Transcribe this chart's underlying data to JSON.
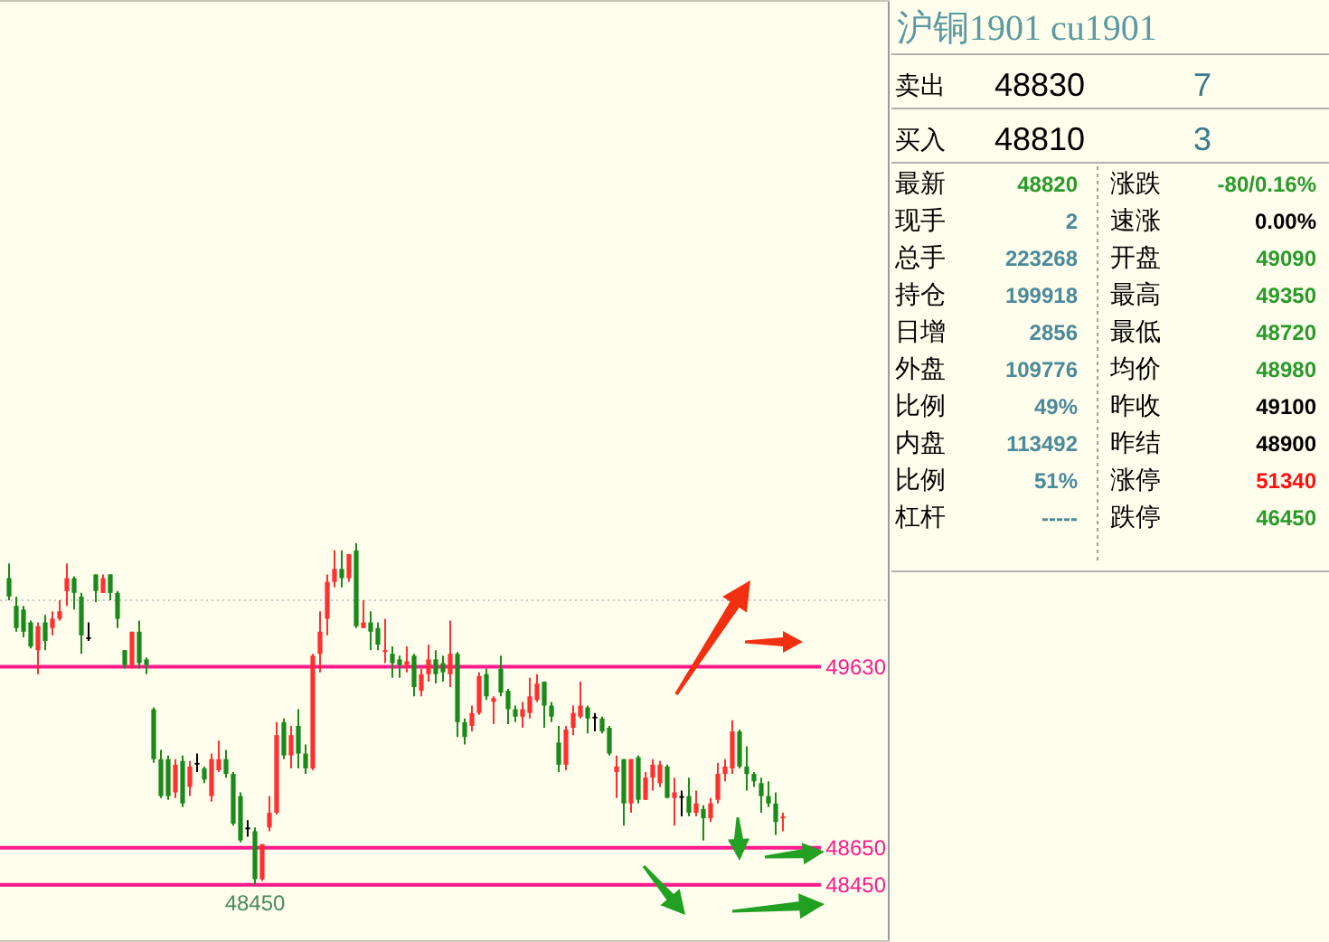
{
  "chart_data": [
    {
      "type": "candlestick",
      "categories": [
        null,
        null,
        null,
        null,
        null,
        null,
        null,
        null,
        null,
        null,
        null,
        null,
        null,
        null,
        null,
        null,
        null,
        null,
        null,
        null,
        null,
        null,
        null,
        null,
        null,
        null,
        null,
        null,
        null,
        null,
        null,
        null,
        null,
        null,
        null,
        null,
        null,
        null,
        null,
        null,
        null,
        null,
        null,
        null,
        null,
        null,
        null,
        null,
        null,
        null,
        null,
        null,
        null,
        null,
        null,
        null,
        null,
        null,
        null,
        null,
        null,
        null,
        null,
        null,
        null,
        null,
        null,
        null,
        null,
        null,
        null,
        null,
        null,
        null,
        null,
        null,
        null,
        null,
        null,
        null,
        null,
        null,
        null,
        null,
        null,
        null,
        null,
        null,
        null,
        null,
        null,
        null,
        null,
        null,
        null,
        null,
        null,
        null,
        null,
        null,
        null,
        null,
        null,
        null,
        null,
        null,
        null,
        null
      ],
      "ohlc": [
        [
          50110,
          50190,
          49990,
          50010
        ],
        [
          49960,
          50010,
          49820,
          49840
        ],
        [
          49940,
          49960,
          49790,
          49820
        ],
        [
          49870,
          49880,
          49730,
          49740
        ],
        [
          49720,
          49870,
          49590,
          49850
        ],
        [
          49870,
          49910,
          49720,
          49770
        ],
        [
          49840,
          49930,
          49800,
          49890
        ],
        [
          49890,
          49990,
          49880,
          49930
        ],
        [
          50040,
          50190,
          49960,
          50110
        ],
        [
          50110,
          50120,
          49940,
          50030
        ],
        [
          50010,
          50030,
          49700,
          49800
        ],
        [
          49790,
          49870,
          49770,
          49790
        ],
        [
          50130,
          50130,
          49980,
          50040
        ],
        [
          50030,
          50130,
          50030,
          50110
        ],
        [
          50130,
          50130,
          49990,
          50030
        ],
        [
          50030,
          50040,
          49840,
          49890
        ],
        [
          49720,
          49720,
          49620,
          49640
        ],
        [
          49640,
          49820,
          49620,
          49820
        ],
        [
          49820,
          49880,
          49620,
          49650
        ],
        [
          49670,
          49680,
          49590,
          49640
        ],
        [
          49400,
          49410,
          49110,
          49130
        ],
        [
          49130,
          49180,
          48920,
          48930
        ],
        [
          49130,
          49150,
          48910,
          48930
        ],
        [
          48950,
          49130,
          48920,
          49100
        ],
        [
          49120,
          49150,
          48870,
          48890
        ],
        [
          48980,
          49120,
          48930,
          49090
        ],
        [
          49110,
          49160,
          49060,
          49110
        ],
        [
          49080,
          49090,
          49000,
          49020
        ],
        [
          48930,
          49160,
          48900,
          49130
        ],
        [
          49070,
          49230,
          49060,
          49130
        ],
        [
          49130,
          49180,
          49030,
          49050
        ],
        [
          49050,
          49060,
          48770,
          48780
        ],
        [
          48930,
          48950,
          48680,
          48690
        ],
        [
          48760,
          48800,
          48710,
          48760
        ],
        [
          48740,
          48760,
          48450,
          48480
        ],
        [
          48480,
          48670,
          48470,
          48670
        ],
        [
          48760,
          48930,
          48740,
          48840
        ],
        [
          48840,
          49330,
          48830,
          49260
        ],
        [
          49330,
          49350,
          49130,
          49150
        ],
        [
          49150,
          49310,
          49080,
          49260
        ],
        [
          49310,
          49400,
          49080,
          49160
        ],
        [
          49160,
          49210,
          49050,
          49080
        ],
        [
          49080,
          49700,
          49070,
          49690
        ],
        [
          49700,
          49930,
          49600,
          49820
        ],
        [
          49890,
          50130,
          49800,
          50090
        ],
        [
          50090,
          50260,
          50060,
          50160
        ],
        [
          50160,
          50260,
          50060,
          50110
        ],
        [
          50110,
          50240,
          50090,
          50240
        ],
        [
          50260,
          50300,
          49840,
          49850
        ],
        [
          49840,
          49990,
          49840,
          49870
        ],
        [
          49870,
          49930,
          49720,
          49820
        ],
        [
          49840,
          49870,
          49720,
          49750
        ],
        [
          49710,
          49890,
          49650,
          49720
        ],
        [
          49700,
          49740,
          49570,
          49650
        ],
        [
          49670,
          49690,
          49570,
          49640
        ],
        [
          49640,
          49740,
          49600,
          49660
        ],
        [
          49690,
          49700,
          49470,
          49520
        ],
        [
          49500,
          49620,
          49470,
          49590
        ],
        [
          49590,
          49750,
          49550,
          49670
        ],
        [
          49670,
          49720,
          49540,
          49590
        ],
        [
          49650,
          49690,
          49550,
          49600
        ],
        [
          49590,
          49880,
          49520,
          49700
        ],
        [
          49700,
          49710,
          49250,
          49330
        ],
        [
          49330,
          49350,
          49210,
          49250
        ],
        [
          49310,
          49420,
          49280,
          49380
        ],
        [
          49380,
          49600,
          49370,
          49580
        ],
        [
          49590,
          49620,
          49450,
          49470
        ],
        [
          49440,
          49470,
          49320,
          49460
        ],
        [
          49620,
          49690,
          49470,
          49490
        ],
        [
          49500,
          49510,
          49320,
          49400
        ],
        [
          49400,
          49420,
          49330,
          49360
        ],
        [
          49360,
          49440,
          49300,
          49400
        ],
        [
          49380,
          49570,
          49350,
          49470
        ],
        [
          49450,
          49590,
          49440,
          49540
        ],
        [
          49550,
          49550,
          49300,
          49420
        ],
        [
          49420,
          49440,
          49330,
          49360
        ],
        [
          49220,
          49310,
          49060,
          49100
        ],
        [
          49100,
          49310,
          49070,
          49290
        ],
        [
          49300,
          49420,
          49260,
          49380
        ],
        [
          49360,
          49550,
          49350,
          49420
        ],
        [
          49410,
          49420,
          49270,
          49350
        ],
        [
          49360,
          49380,
          49280,
          49360
        ],
        [
          49350,
          49360,
          49270,
          49280
        ],
        [
          49300,
          49310,
          49150,
          49160
        ],
        [
          49060,
          49150,
          48920,
          49090
        ],
        [
          49130,
          49130,
          48770,
          48890
        ],
        [
          48890,
          49130,
          48840,
          49130
        ],
        [
          49140,
          49150,
          48890,
          48910
        ],
        [
          48910,
          49060,
          48910,
          49030
        ],
        [
          49030,
          49130,
          48960,
          49100
        ],
        [
          49000,
          49120,
          48980,
          49100
        ],
        [
          49090,
          49100,
          48920,
          48920
        ],
        [
          48920,
          49030,
          48770,
          48950
        ],
        [
          48930,
          48960,
          48820,
          48930
        ],
        [
          48930,
          49030,
          48820,
          48840
        ],
        [
          48840,
          48960,
          48820,
          48890
        ],
        [
          48860,
          48880,
          48690,
          48810
        ],
        [
          48810,
          48920,
          48790,
          48890
        ],
        [
          48910,
          49110,
          48890,
          49050
        ],
        [
          49050,
          49130,
          49010,
          49090
        ],
        [
          49080,
          49340,
          49050,
          49280
        ],
        [
          49280,
          49290,
          49080,
          49090
        ],
        [
          49090,
          49200,
          48960,
          49050
        ],
        [
          49050,
          49060,
          48980,
          49010
        ],
        [
          49000,
          49030,
          48840,
          48930
        ],
        [
          48930,
          49010,
          48870,
          48890
        ],
        [
          48890,
          48950,
          48720,
          48790
        ],
        [
          48810,
          48840,
          48740,
          48820
        ]
      ],
      "colors": [
        "#1a8a1a",
        "#1a8a1a",
        "#1a8a1a",
        "#1a8a1a",
        "#ff3030",
        "#1a8a1a",
        "#ff3030",
        "#ff3030",
        "#ff3030",
        "#1a8a1a",
        "#1a8a1a",
        "#000000",
        "#1a8a1a",
        "#ff3030",
        "#1a8a1a",
        "#1a8a1a",
        "#1a8a1a",
        "#ff3030",
        "#1a8a1a",
        "#1a8a1a",
        "#1a8a1a",
        "#1a8a1a",
        "#1a8a1a",
        "#ff3030",
        "#1a8a1a",
        "#ff3030",
        "#000000",
        "#1a8a1a",
        "#ff3030",
        "#ff3030",
        "#1a8a1a",
        "#1a8a1a",
        "#1a8a1a",
        "#000000",
        "#1a8a1a",
        "#ff3030",
        "#ff3030",
        "#ff3030",
        "#1a8a1a",
        "#ff3030",
        "#1a8a1a",
        "#1a8a1a",
        "#ff3030",
        "#ff3030",
        "#ff3030",
        "#ff3030",
        "#1a8a1a",
        "#ff3030",
        "#1a8a1a",
        "#ff3030",
        "#1a8a1a",
        "#1a8a1a",
        "#ff3030",
        "#1a8a1a",
        "#1a8a1a",
        "#ff3030",
        "#1a8a1a",
        "#ff3030",
        "#ff3030",
        "#1a8a1a",
        "#1a8a1a",
        "#ff3030",
        "#1a8a1a",
        "#1a8a1a",
        "#ff3030",
        "#ff3030",
        "#1a8a1a",
        "#ff3030",
        "#1a8a1a",
        "#1a8a1a",
        "#1a8a1a",
        "#ff3030",
        "#ff3030",
        "#ff3030",
        "#1a8a1a",
        "#1a8a1a",
        "#1a8a1a",
        "#ff3030",
        "#ff3030",
        "#ff3030",
        "#1a8a1a",
        "#000000",
        "#1a8a1a",
        "#1a8a1a",
        "#ff3030",
        "#1a8a1a",
        "#ff3030",
        "#1a8a1a",
        "#ff3030",
        "#ff3030",
        "#ff3030",
        "#1a8a1a",
        "#ff3030",
        "#000000",
        "#1a8a1a",
        "#ff3030",
        "#1a8a1a",
        "#ff3030",
        "#ff3030",
        "#ff3030",
        "#ff3030",
        "#1a8a1a",
        "#1a8a1a",
        "#1a8a1a",
        "#1a8a1a",
        "#1a8a1a",
        "#1a8a1a",
        "#ff3030"
      ],
      "ylim": [
        48140,
        53240
      ],
      "yticks": [
        48450,
        48650,
        49630
      ],
      "tick_labels": "y",
      "ref_lines": [
        {
          "axis": "y",
          "value": 49630,
          "color": "#ff1a8c"
        },
        {
          "axis": "y",
          "value": 48650,
          "color": "#ff1a8c"
        },
        {
          "axis": "y",
          "value": 48450,
          "color": "#ff1a8c"
        },
        {
          "axis": "y",
          "value": 49990,
          "color": "#c8c8c8",
          "line_style": "dotted"
        }
      ],
      "annotations": [
        {
          "text": "48450",
          "y": 48450
        }
      ]
    },
    {
      "type": "other",
      "title": "沪铜1901  cu1901",
      "annotations": [
        "卖出",
        "48830",
        "7",
        "买入",
        "48810",
        "3",
        "最新",
        "48820",
        "涨跌",
        "-80/0.16%",
        "现手",
        "2",
        "速涨",
        "0.00%",
        "总手",
        "223268",
        "开盘",
        "49090",
        "持仓",
        "199918",
        "最高",
        "49350",
        "日增",
        "2856",
        "最低",
        "48720",
        "外盘",
        "109776",
        "均价",
        "48980",
        "比例",
        "49%",
        "昨收",
        "49100",
        "内盘",
        "113492",
        "昨结",
        "48900",
        "比例",
        "51%",
        "涨停",
        "51340",
        "杠杆",
        "-----",
        "跌停",
        "46450"
      ]
    }
  ]
}
